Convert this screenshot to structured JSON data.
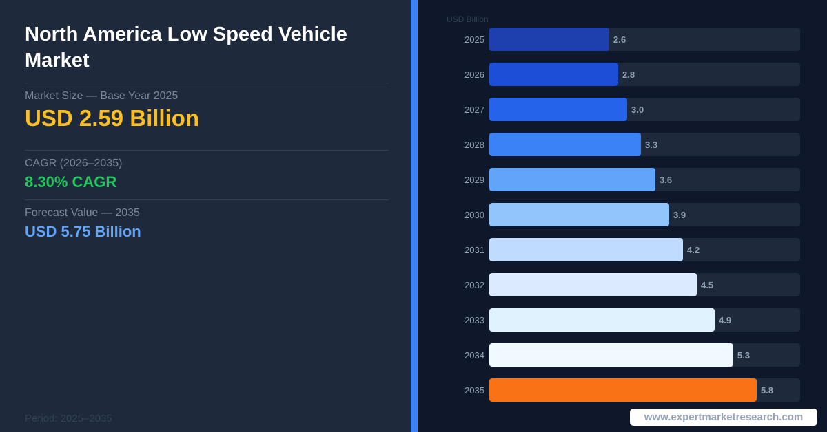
{
  "header": {
    "title_line1": "North America Low Speed Vehicle",
    "title_line2": "Market"
  },
  "stats": {
    "market_size_label": "Market Size — Base Year 2025",
    "market_size_value": "USD 2.59 Billion",
    "cagr_label": "CAGR (2026–2035)",
    "cagr_value": "8.30% CAGR",
    "forecast_label": "Forecast Value — 2035",
    "forecast_value": "USD 5.75 Billion"
  },
  "footer": {
    "period": "Period: 2025–2035",
    "watermark": "www.expertmarketresearch.com"
  },
  "colors": {
    "market_size": "#fbbf24",
    "cagr": "#22c55e",
    "forecast": "#60a5fa",
    "accent": "#3b82f6",
    "highlight_bar": "#f97316"
  },
  "chart_data": {
    "type": "bar",
    "orientation": "horizontal",
    "unit_label": "USD Billion",
    "categories": [
      "2025",
      "2026",
      "2027",
      "2028",
      "2029",
      "2030",
      "2031",
      "2032",
      "2033",
      "2034",
      "2035"
    ],
    "values": [
      2.6,
      2.8,
      3.0,
      3.3,
      3.6,
      3.9,
      4.2,
      4.5,
      4.9,
      5.3,
      5.8
    ],
    "value_labels": [
      "2.6",
      "2.8",
      "3.0",
      "3.3",
      "3.6",
      "3.9",
      "4.2",
      "4.5",
      "4.9",
      "5.3",
      "5.8"
    ],
    "bar_colors": [
      "#1e40af",
      "#1d4ed8",
      "#2563eb",
      "#3b82f6",
      "#60a5fa",
      "#93c5fd",
      "#bfdbfe",
      "#dbeafe",
      "#e0f2fe",
      "#f0f9ff",
      "#f97316"
    ],
    "xlim": [
      0,
      6.75
    ]
  }
}
